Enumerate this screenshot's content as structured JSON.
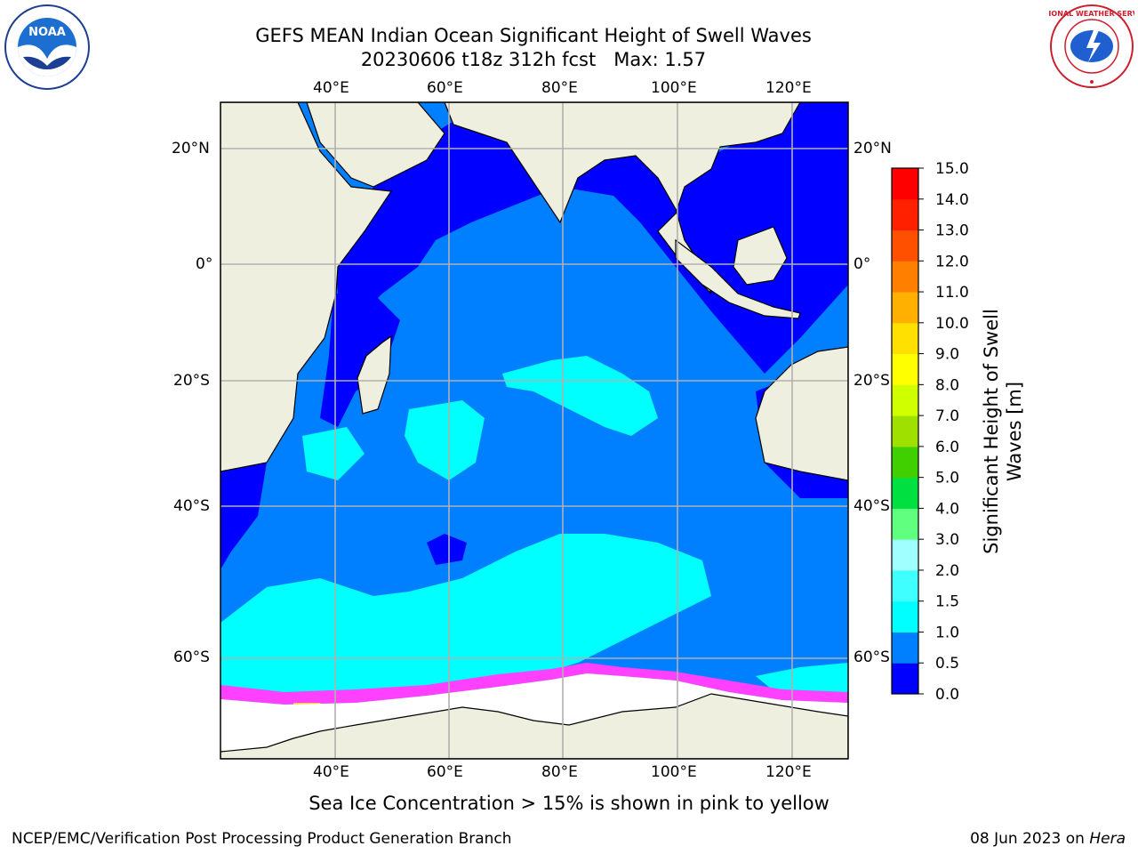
{
  "title": {
    "line1": "GEFS MEAN Indian Ocean Significant Height of Swell Waves",
    "line2": "20230606 t18z 312h fcst   Max: 1.57"
  },
  "map": {
    "lon_range": [
      20,
      130
    ],
    "lat_range": [
      -75,
      28
    ],
    "grid": true,
    "lon_ticks": [
      "40°E",
      "60°E",
      "80°E",
      "100°E",
      "120°E"
    ],
    "lat_ticks": [
      "20°N",
      "0°",
      "20°S",
      "40°S",
      "60°S"
    ]
  },
  "colorbar": {
    "label": "Significant Height of Swell Waves [m]",
    "ticks": [
      "0.0",
      "0.5",
      "1.0",
      "1.5",
      "2.0",
      "3.0",
      "4.0",
      "5.0",
      "6.0",
      "7.0",
      "8.0",
      "9.0",
      "10.0",
      "11.0",
      "12.0",
      "13.0",
      "14.0",
      "15.0"
    ],
    "colors": [
      "#0000ff",
      "#0080ff",
      "#00ffff",
      "#40ffff",
      "#a0ffff",
      "#60ff80",
      "#00e040",
      "#40d000",
      "#a0e000",
      "#d0ff00",
      "#ffff00",
      "#ffe000",
      "#ffb000",
      "#ff8000",
      "#ff5000",
      "#ff2000",
      "#ff0000"
    ]
  },
  "caption": "Sea Ice Concentration > 15% is shown in pink to yellow",
  "footer": {
    "left": "NCEP/EMC/Verification Post Processing Product Generation Branch",
    "right_prefix": "08 Jun 2023 on ",
    "right_machine": "Hera"
  },
  "logos": {
    "left": "NOAA",
    "right": "NATIONAL WEATHER SERVICE"
  }
}
